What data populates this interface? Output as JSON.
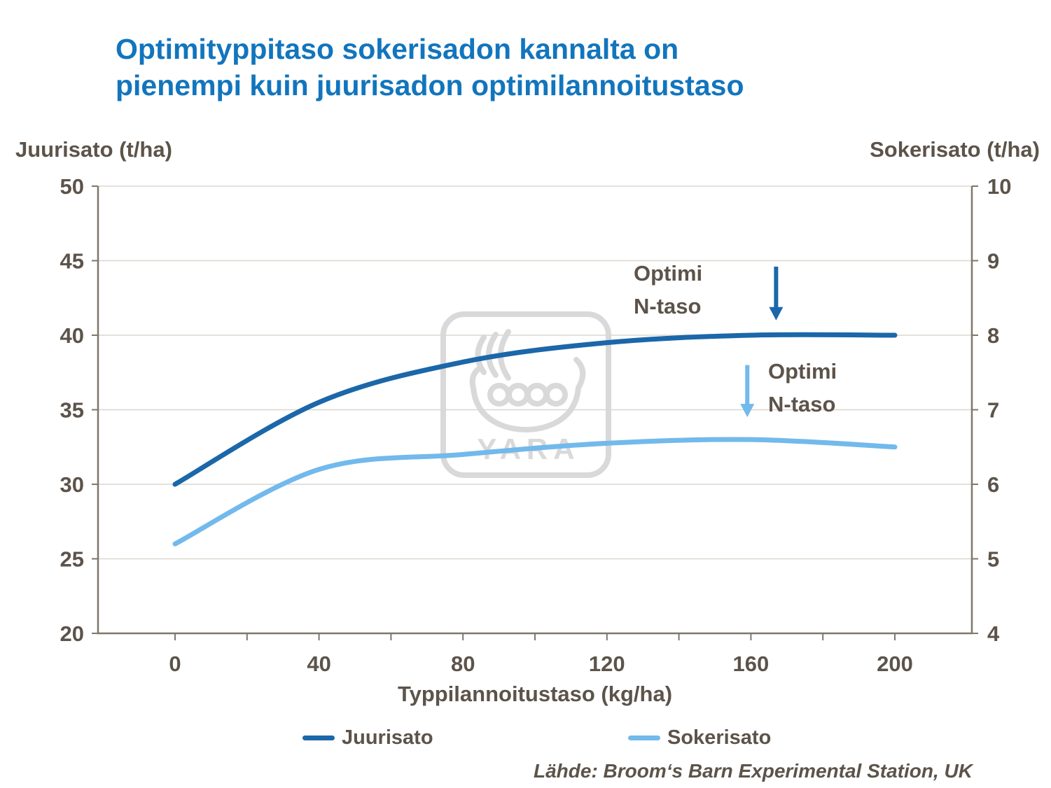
{
  "title": "Optimityppitaso sokerisadon kannalta on\npienempi kuin juurisadon optimilannoitustaso",
  "source": "Lähde: Broom‘s Barn Experimental Station, UK",
  "watermark": "YARA",
  "colors": {
    "title": "#1275bd",
    "juurisato": "#1b67a9",
    "sokerisato": "#72b9ec",
    "text": "#5c534a",
    "grid": "#dcd7cf",
    "axis": "#7f776b",
    "watermark": "#d9d9d9"
  },
  "annotations": [
    {
      "text": "Optimi\nN-taso",
      "series": "Juurisato"
    },
    {
      "text": "Optimi\nN-taso",
      "series": "Sokerisato"
    }
  ],
  "chart_data": {
    "type": "line",
    "x": [
      0,
      40,
      80,
      120,
      160,
      200
    ],
    "series": [
      {
        "name": "Juurisato",
        "axis": "left",
        "color": "#1b67a9",
        "values": [
          30,
          35.5,
          38.2,
          39.5,
          40,
          40
        ]
      },
      {
        "name": "Sokerisato",
        "axis": "right",
        "color": "#72b9ec",
        "values": [
          5.2,
          6.2,
          6.4,
          6.55,
          6.6,
          6.5
        ]
      }
    ],
    "xlabel": "Typpilannoitustaso (kg/ha)",
    "ylabel_left": "Juurisato (t/ha)",
    "ylabel_right": "Sokerisato (t/ha)",
    "x_ticks": [
      0,
      40,
      80,
      120,
      160,
      200
    ],
    "y_left_ticks": [
      20,
      25,
      30,
      35,
      40,
      45,
      50
    ],
    "y_right_ticks": [
      4,
      5,
      6,
      7,
      8,
      9,
      10
    ],
    "x_range": [
      0,
      200
    ],
    "y_left_range": [
      20,
      50
    ],
    "y_right_range": [
      4,
      10
    ],
    "grid": "horizontal",
    "legend_position": "bottom",
    "arrows": [
      {
        "x": 167,
        "y_from": 44.6,
        "y_to": 41.0,
        "axis": "left",
        "color": "#1b67a9"
      },
      {
        "x": 159,
        "y_from": 38.0,
        "y_to": 34.5,
        "axis": "left",
        "color": "#72b9ec"
      }
    ]
  }
}
